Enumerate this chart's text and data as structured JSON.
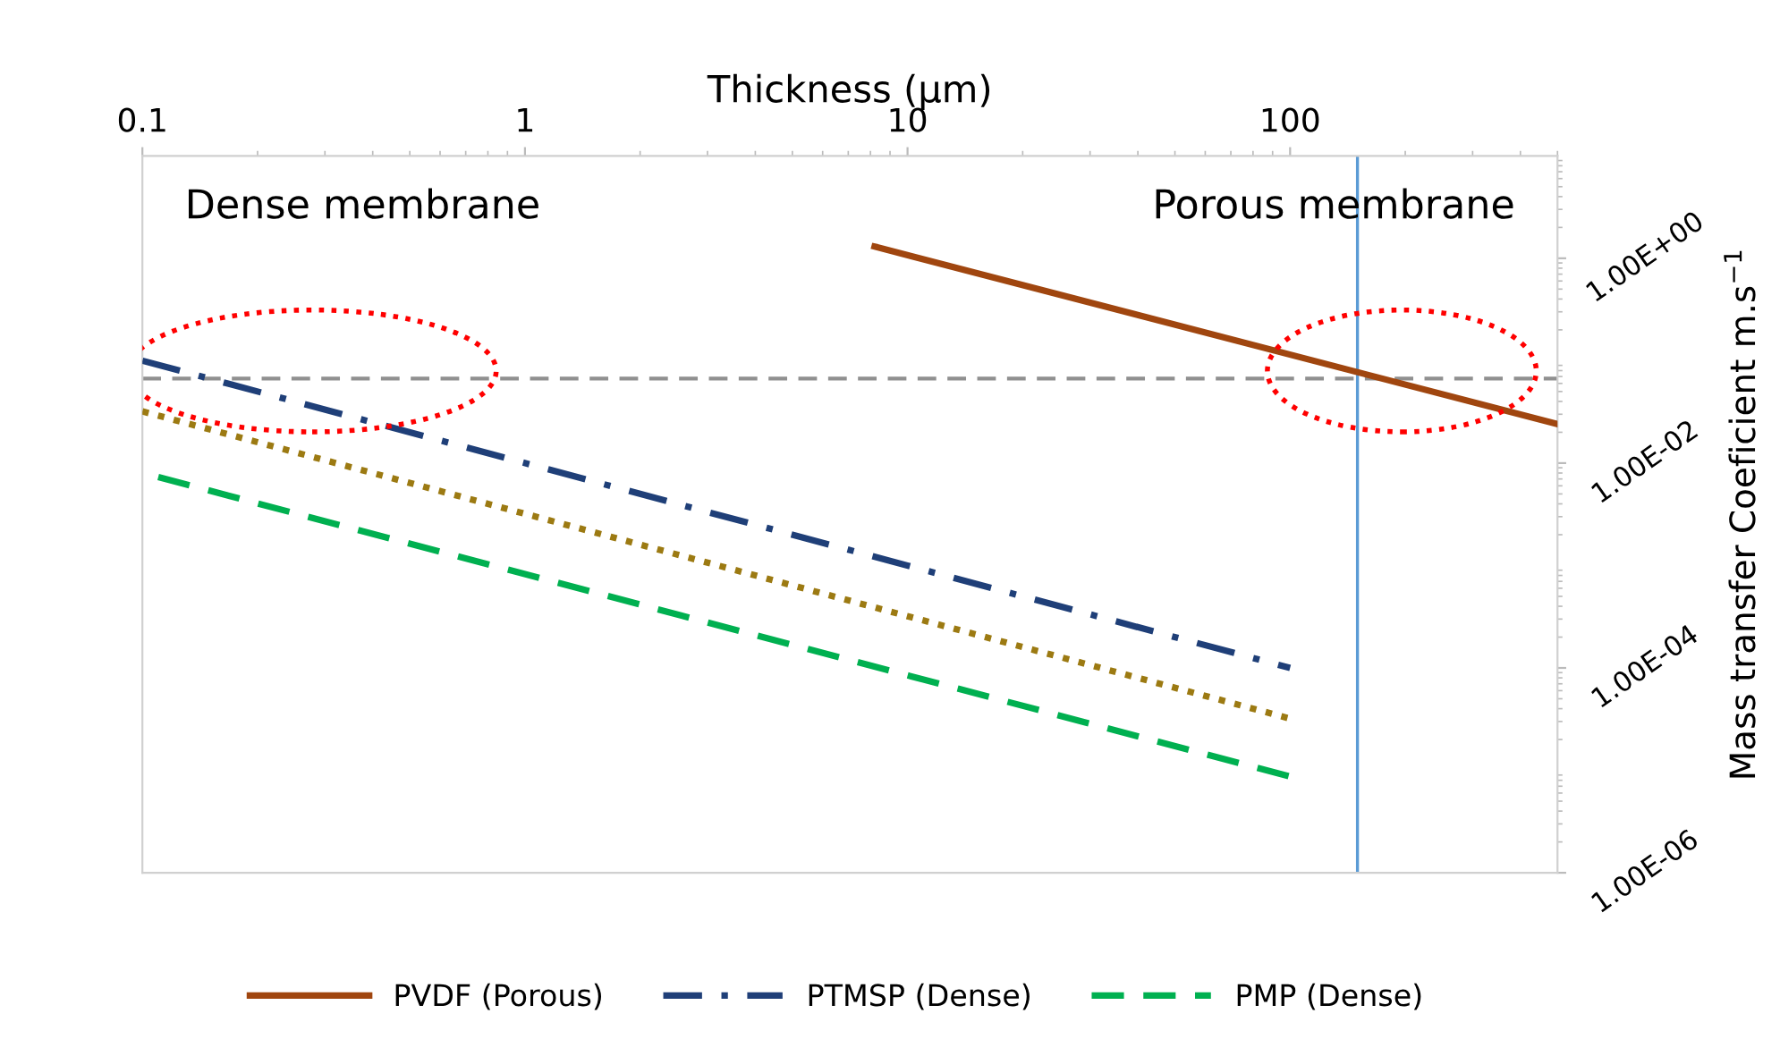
{
  "chart_data": {
    "type": "line",
    "xlabel": "Thickness (µm)",
    "ylabel": "Mass transfer Coeficient m.s$^{−1}$",
    "log": "xy",
    "xlim": [
      0.1,
      500
    ],
    "xticks": [
      {
        "value": 0.1,
        "label": "0.1"
      },
      1,
      10,
      100
    ],
    "ylim": [
      1e-06,
      10
    ],
    "yticks": [
      {
        "value": 1e-06,
        "label": "1.00E-06"
      },
      {
        "value": 0.0001,
        "label": "1.00E-04"
      },
      {
        "value": 0.01,
        "label": "1.00E-02"
      },
      {
        "value": 1,
        "label": "1.00E+00"
      }
    ],
    "grid": false,
    "legend": "bottom",
    "marker": "none",
    "series": [
      {
        "name": "PVDF (Porous)",
        "color": "#a0460f",
        "line_style": "solid",
        "x": [
          8.2,
          500
        ],
        "values": [
          1.3,
          0.024
        ]
      },
      {
        "color": "#9c7a12",
        "line_style": "dotted",
        "x": [
          0.1,
          100
        ],
        "values": [
          0.032,
          3.2e-05
        ]
      },
      {
        "name": "PTMSP (Dense)",
        "color": "#1f3f78",
        "line_style": "dashdot",
        "x": [
          0.1,
          100
        ],
        "values": [
          0.1,
          0.0001
        ]
      },
      {
        "name": "PMP (Dense)",
        "color": "#00b050",
        "line_style": "dashed",
        "x": [
          0.11,
          100
        ],
        "values": [
          0.0073,
          8.7e-06
        ]
      }
    ],
    "ref_lines": [
      {
        "axis": "y",
        "value": 0.067,
        "color": "#909090",
        "line_style": "dashed"
      },
      {
        "axis": "x",
        "value": 150,
        "color": "#5b9bd5",
        "line_style": "solid"
      }
    ],
    "annotations": [
      "Dense membrane",
      "Porous membrane"
    ]
  }
}
